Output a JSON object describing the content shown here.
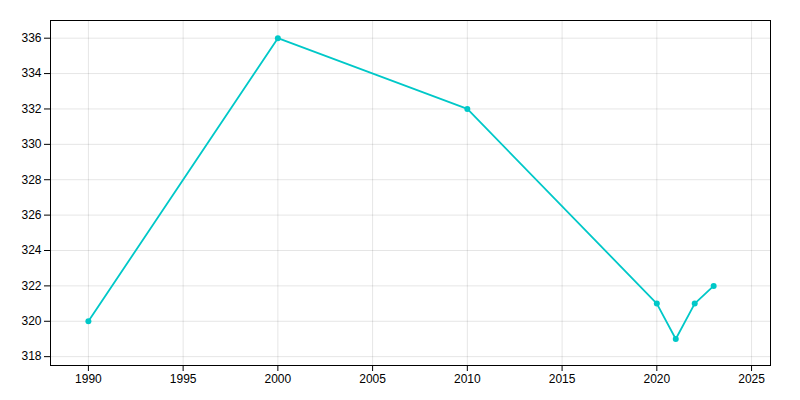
{
  "chart_data": {
    "type": "line",
    "x": [
      1990,
      2000,
      2010,
      2020,
      2021,
      2022,
      2023
    ],
    "values": [
      320,
      336,
      332,
      321,
      319,
      321,
      322
    ],
    "color": "#00C8C8",
    "marker": "circle",
    "xlim": [
      1988,
      2026
    ],
    "ylim": [
      317.5,
      337
    ],
    "xticks": [
      1990,
      1995,
      2000,
      2005,
      2010,
      2015,
      2020,
      2025
    ],
    "yticks": [
      318,
      320,
      322,
      324,
      326,
      328,
      330,
      332,
      334,
      336
    ],
    "grid": true
  }
}
